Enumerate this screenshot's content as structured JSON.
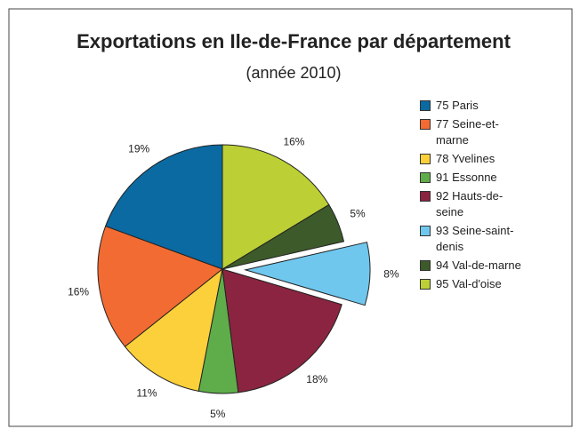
{
  "chart_data": {
    "type": "pie",
    "title": "Exportations en Ile-de-France par département",
    "subtitle": "(année 2010)",
    "categories": [
      "75 Paris",
      "77 Seine-et-marne",
      "78 Yvelines",
      "91 Essonne",
      "92 Hauts-de-seine",
      "93 Seine-saint-denis",
      "94 Val-de-marne",
      "95 Val-d'oise"
    ],
    "values": [
      19,
      16,
      11,
      5,
      18,
      8,
      5,
      16
    ],
    "value_labels": [
      "19%",
      "16%",
      "11%",
      "5%",
      "18%",
      "8%",
      "5%",
      "16%"
    ],
    "colors": [
      "#0a6aa1",
      "#f26b32",
      "#fcd03a",
      "#5fad4a",
      "#8b2440",
      "#6fc7ee",
      "#3c5a2a",
      "#bccf35"
    ],
    "explode_index": 5,
    "legend": "right"
  }
}
